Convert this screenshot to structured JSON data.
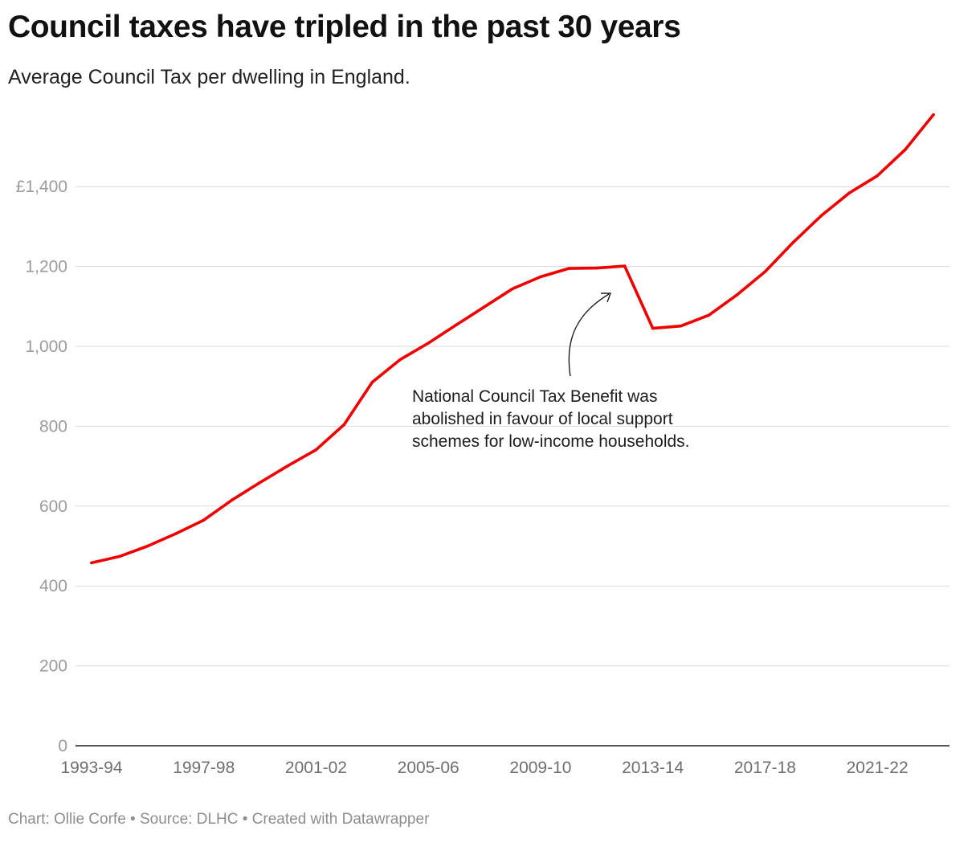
{
  "header": {
    "title": "Council taxes have tripled in the past 30 years",
    "subtitle": "Average Council Tax per dwelling in England."
  },
  "footer": {
    "text": "Chart: Ollie Corfe • Source: DLHC • Created with Datawrapper"
  },
  "annotation": {
    "lines": [
      "National Council Tax Benefit was",
      "abolished in favour of local support",
      "schemes for low-income households."
    ]
  },
  "colors": {
    "line": "#ee0000",
    "grid": "#d9d9d9",
    "axis": "#1d1d1d"
  },
  "chart_data": {
    "type": "line",
    "title": "Council taxes have tripled in the past 30 years",
    "subtitle": "Average Council Tax per dwelling in England.",
    "xlabel": "",
    "ylabel": "",
    "ylim": [
      0,
      1600
    ],
    "grid": true,
    "yticks": [
      {
        "value": 0,
        "label": "0"
      },
      {
        "value": 200,
        "label": "200"
      },
      {
        "value": 400,
        "label": "400"
      },
      {
        "value": 600,
        "label": "600"
      },
      {
        "value": 800,
        "label": "800"
      },
      {
        "value": 1000,
        "label": "1,000"
      },
      {
        "value": 1200,
        "label": "1,200"
      },
      {
        "value": 1400,
        "label": "£1,400"
      }
    ],
    "xticks": [
      "1993-94",
      "1997-98",
      "2001-02",
      "2005-06",
      "2009-10",
      "2013-14",
      "2017-18",
      "2021-22"
    ],
    "categories": [
      "1993-94",
      "1994-95",
      "1995-96",
      "1996-97",
      "1997-98",
      "1998-99",
      "1999-00",
      "2000-01",
      "2001-02",
      "2002-03",
      "2003-04",
      "2004-05",
      "2005-06",
      "2006-07",
      "2007-08",
      "2008-09",
      "2009-10",
      "2010-11",
      "2011-12",
      "2012-13",
      "2013-14",
      "2014-15",
      "2015-16",
      "2016-17",
      "2017-18",
      "2018-19",
      "2019-20",
      "2020-21",
      "2021-22",
      "2022-23",
      "2023-24"
    ],
    "series": [
      {
        "values": [
          458,
          474,
          500,
          531,
          565,
          615,
          659,
          701,
          741,
          804,
          910,
          967,
          1008,
          1054,
          1099,
          1144,
          1174,
          1195,
          1196,
          1201,
          1045,
          1051,
          1078,
          1129,
          1187,
          1260,
          1327,
          1384,
          1427,
          1493,
          1580
        ]
      }
    ]
  }
}
